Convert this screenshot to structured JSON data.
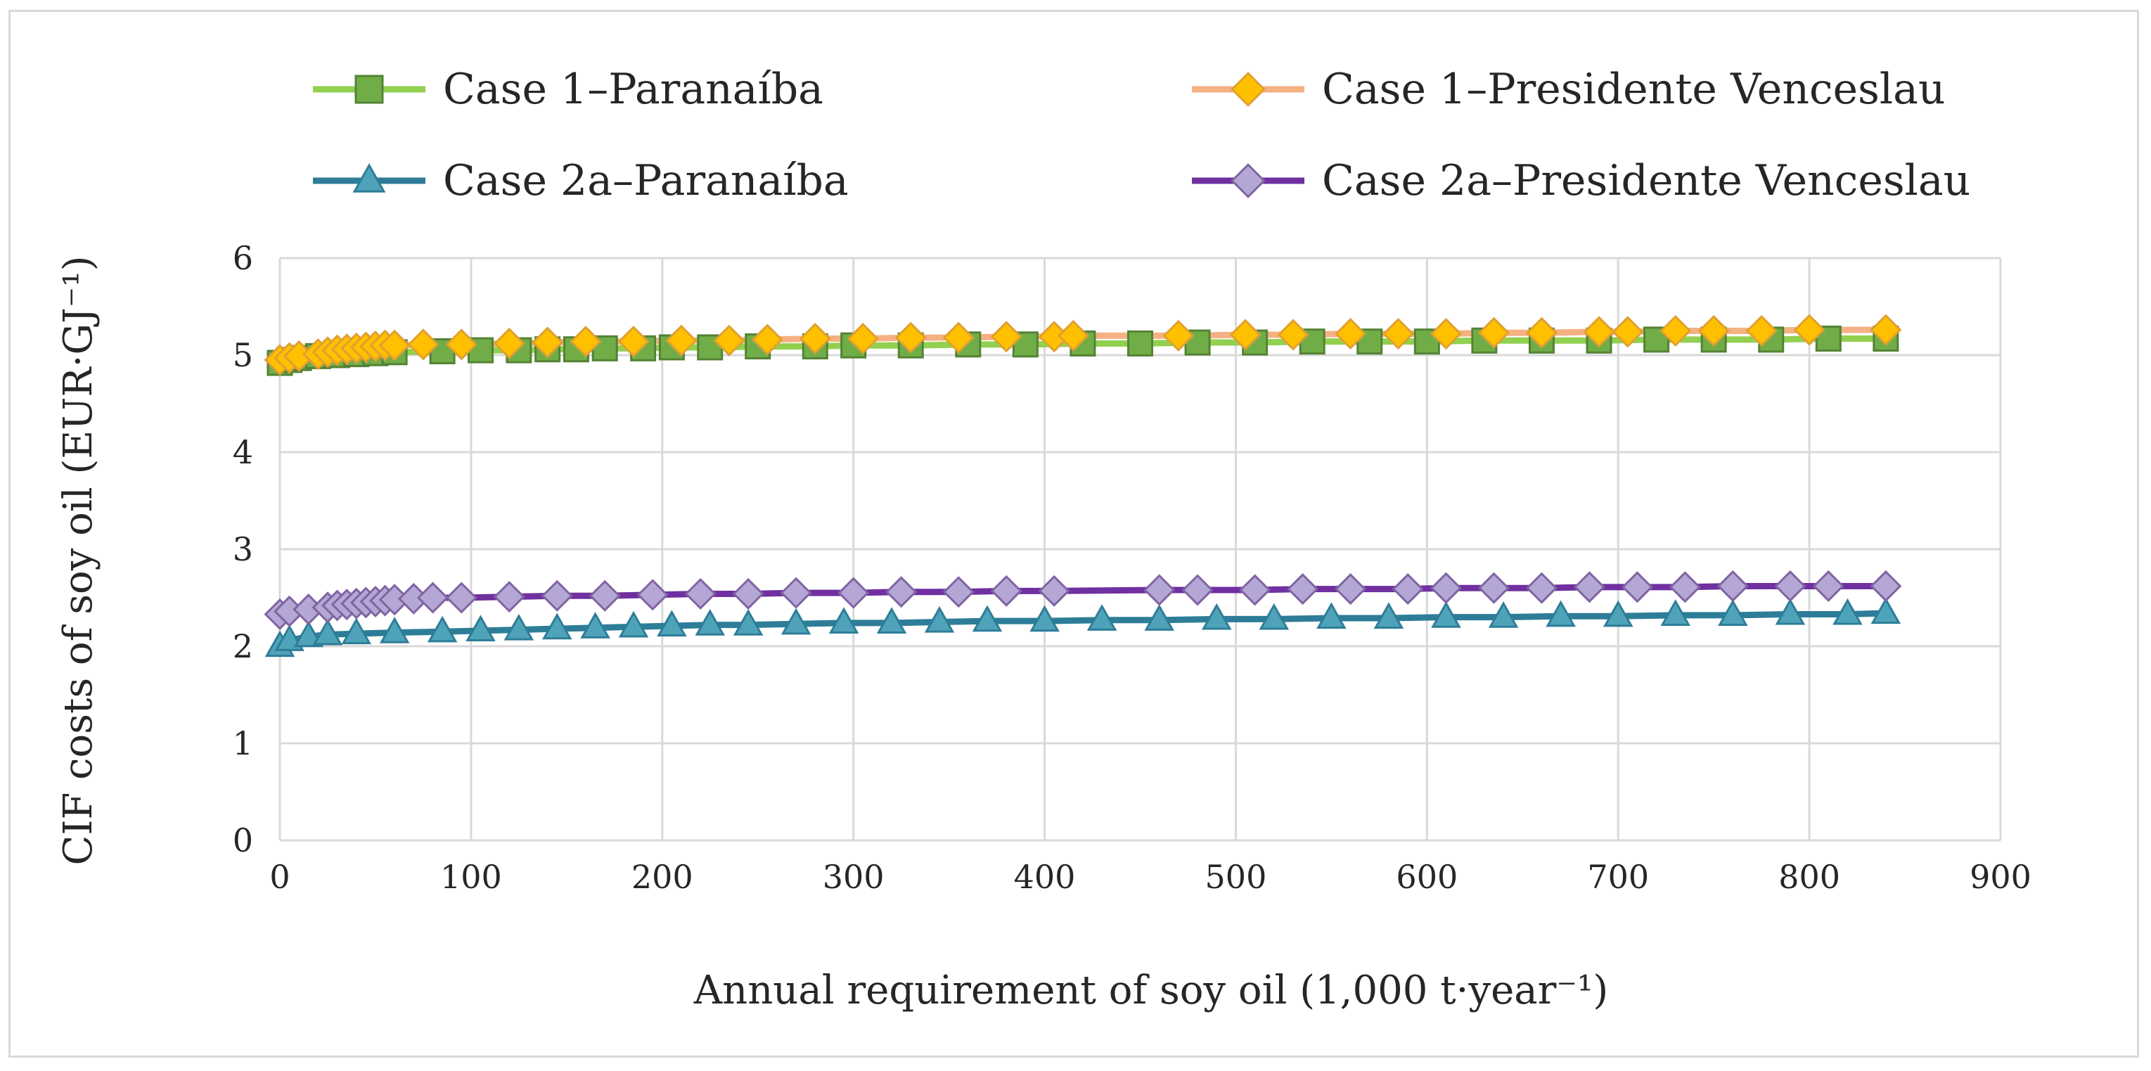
{
  "chart_data": {
    "type": "line",
    "title": "",
    "xlabel": "Annual requirement of soy oil (1,000 t·year⁻¹)",
    "ylabel": "CIF costs of soy oil (EUR·GJ⁻¹)",
    "xlim": [
      0,
      900
    ],
    "ylim": [
      0,
      6
    ],
    "xticks": [
      "0",
      "100",
      "200",
      "300",
      "400",
      "500",
      "600",
      "700",
      "800",
      "900"
    ],
    "yticks": [
      "0",
      "1",
      "2",
      "3",
      "4",
      "5",
      "6"
    ],
    "grid": true,
    "legend_position": "top",
    "series": [
      {
        "name": "Case 1–Paranaíba",
        "color": "#70ad47",
        "line_color": "#92d050",
        "marker": "square",
        "x": [
          0,
          5,
          10,
          20,
          30,
          40,
          50,
          60,
          85,
          105,
          125,
          140,
          155,
          170,
          190,
          205,
          225,
          250,
          280,
          300,
          330,
          360,
          390,
          420,
          450,
          480,
          510,
          540,
          570,
          600,
          630,
          660,
          690,
          720,
          750,
          780,
          810,
          840
        ],
        "y": [
          4.92,
          4.95,
          4.97,
          4.99,
          5.0,
          5.01,
          5.02,
          5.03,
          5.04,
          5.05,
          5.05,
          5.06,
          5.06,
          5.07,
          5.07,
          5.08,
          5.08,
          5.09,
          5.09,
          5.1,
          5.1,
          5.11,
          5.11,
          5.12,
          5.12,
          5.13,
          5.13,
          5.14,
          5.14,
          5.14,
          5.15,
          5.15,
          5.15,
          5.16,
          5.16,
          5.16,
          5.17,
          5.17
        ]
      },
      {
        "name": "Case 1–Presidente Venceslau",
        "color": "#ffc000",
        "line_color": "#f4b183",
        "marker": "diamond",
        "x": [
          0,
          5,
          10,
          20,
          25,
          30,
          35,
          40,
          45,
          50,
          55,
          60,
          75,
          95,
          120,
          140,
          160,
          185,
          210,
          235,
          255,
          280,
          305,
          330,
          355,
          380,
          405,
          415,
          470,
          505,
          530,
          560,
          585,
          610,
          635,
          660,
          690,
          705,
          730,
          750,
          775,
          800,
          840
        ],
        "y": [
          4.95,
          4.97,
          4.99,
          5.01,
          5.03,
          5.05,
          5.06,
          5.07,
          5.08,
          5.09,
          5.1,
          5.1,
          5.11,
          5.11,
          5.12,
          5.13,
          5.14,
          5.14,
          5.15,
          5.15,
          5.16,
          5.17,
          5.17,
          5.18,
          5.18,
          5.19,
          5.19,
          5.2,
          5.2,
          5.21,
          5.21,
          5.22,
          5.22,
          5.22,
          5.23,
          5.23,
          5.24,
          5.24,
          5.25,
          5.25,
          5.25,
          5.26,
          5.26
        ]
      },
      {
        "name": "Case 2a–Paranaíba",
        "color": "#4fa3b8",
        "line_color": "#2e7d98",
        "marker": "triangle",
        "x": [
          0,
          5,
          15,
          25,
          40,
          60,
          85,
          105,
          125,
          145,
          165,
          185,
          205,
          225,
          245,
          270,
          295,
          320,
          345,
          370,
          400,
          430,
          460,
          490,
          520,
          550,
          580,
          610,
          640,
          670,
          700,
          730,
          760,
          790,
          820,
          840
        ],
        "y": [
          2.0,
          2.06,
          2.1,
          2.12,
          2.13,
          2.14,
          2.15,
          2.16,
          2.17,
          2.18,
          2.19,
          2.2,
          2.21,
          2.22,
          2.22,
          2.23,
          2.24,
          2.24,
          2.25,
          2.26,
          2.26,
          2.27,
          2.27,
          2.28,
          2.28,
          2.29,
          2.29,
          2.3,
          2.3,
          2.31,
          2.31,
          2.32,
          2.32,
          2.33,
          2.33,
          2.34
        ]
      },
      {
        "name": "Case 2a–Presidente Venceslau",
        "color": "#b4a7d6",
        "line_color": "#7030a0",
        "marker": "diamond",
        "x": [
          0,
          5,
          15,
          25,
          30,
          35,
          40,
          45,
          50,
          55,
          60,
          70,
          80,
          95,
          120,
          145,
          170,
          195,
          220,
          245,
          270,
          300,
          325,
          355,
          380,
          405,
          460,
          480,
          510,
          535,
          560,
          590,
          610,
          635,
          660,
          685,
          710,
          735,
          760,
          790,
          810,
          840
        ],
        "y": [
          2.33,
          2.36,
          2.38,
          2.4,
          2.42,
          2.43,
          2.44,
          2.45,
          2.46,
          2.47,
          2.48,
          2.49,
          2.5,
          2.5,
          2.51,
          2.52,
          2.52,
          2.53,
          2.54,
          2.54,
          2.55,
          2.55,
          2.56,
          2.56,
          2.57,
          2.57,
          2.58,
          2.58,
          2.58,
          2.59,
          2.59,
          2.59,
          2.6,
          2.6,
          2.6,
          2.61,
          2.61,
          2.61,
          2.62,
          2.62,
          2.62,
          2.62
        ]
      }
    ]
  }
}
